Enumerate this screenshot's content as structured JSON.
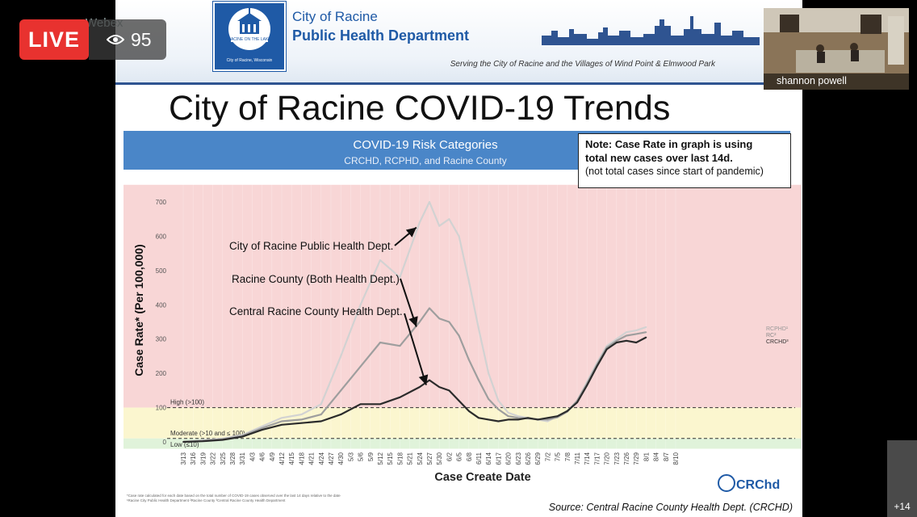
{
  "stream": {
    "live_label": "LIVE",
    "viewer_count": "95",
    "app_label": "Webex",
    "participant_name": "shannon powell",
    "more_participants": "+14"
  },
  "slide": {
    "header_line_1": "City of Racine",
    "header_line_2": "Public Health Department",
    "logo_text_top": "RACINE ON THE LAKE",
    "logo_text_bottom": "City of Racine, Wisconsin",
    "tagline": "Serving the City of Racine and the Villages of Wind Point & Elmwood Park",
    "title": "City of Racine COVID-19 Trends",
    "note_line_1": "Note: Case Rate in graph is using",
    "note_line_2": "total new cases over last 14d.",
    "note_line_3": "(not total cases since start of pandemic)",
    "source": "Source: Central Racine County Health Dept. (CRCHD)",
    "footnote_1": "*Case rate calculated for each date based on the total number of COVID-19 cases observed over the last 14 days relative to the date",
    "footnote_2": "¹Racine City Public Health Department    ²Racine County    ³Central Racine County Health Department",
    "crchd_logo_text": "CRChd"
  },
  "chart_data": {
    "type": "line",
    "title": "COVID-19 Risk Categories",
    "subtitle": "CRCHD, RCPHD, and Racine County",
    "xlabel": "Case Create Date",
    "ylabel": "Case Rate* (Per 100,000)",
    "ylim": [
      0,
      750
    ],
    "yticks": [
      0,
      100,
      200,
      300,
      400,
      500,
      600,
      700
    ],
    "x_ticks": [
      "3/13",
      "3/16",
      "3/19",
      "3/22",
      "3/25",
      "3/28",
      "3/31",
      "4/3",
      "4/6",
      "4/9",
      "4/12",
      "4/15",
      "4/18",
      "4/21",
      "4/24",
      "4/27",
      "4/30",
      "5/3",
      "5/6",
      "5/9",
      "5/12",
      "5/15",
      "5/18",
      "5/21",
      "5/24",
      "5/27",
      "5/30",
      "6/2",
      "6/5",
      "6/8",
      "6/11",
      "6/14",
      "6/17",
      "6/20",
      "6/23",
      "6/26",
      "6/29",
      "7/2",
      "7/5",
      "7/8",
      "7/11",
      "7/14",
      "7/17",
      "7/20",
      "7/23",
      "7/26",
      "7/29",
      "8/1",
      "8/4",
      "8/7",
      "8/10"
    ],
    "risk_bands": [
      {
        "label": "High (>100)",
        "from": 100,
        "to": 750,
        "color": "#f8d6d6"
      },
      {
        "label": "Moderate (>10 and ≤ 100)",
        "from": 10,
        "to": 100,
        "color": "#fbf6cf"
      },
      {
        "label": "Low (≤10)",
        "from": -20,
        "to": 10,
        "color": "#e0f3da"
      }
    ],
    "annotations": [
      "City of Racine Public Health Dept.",
      "Racine County (Both Health Dept.)",
      "Central Racine County Health Dept."
    ],
    "series": [
      {
        "name": "RCPHD",
        "color": "#d2d2d2",
        "x": [
          "3/13",
          "3/19",
          "3/25",
          "3/31",
          "4/6",
          "4/12",
          "4/18",
          "4/24",
          "4/30",
          "5/6",
          "5/12",
          "5/18",
          "5/24",
          "5/27",
          "5/30",
          "6/2",
          "6/5",
          "6/8",
          "6/11",
          "6/14",
          "6/17",
          "6/20",
          "6/23",
          "6/26",
          "6/29",
          "7/2",
          "7/5",
          "7/8",
          "7/11",
          "7/14",
          "7/17",
          "7/20",
          "7/23",
          "7/26",
          "7/29",
          "8/1"
        ],
        "y": [
          0,
          5,
          10,
          20,
          45,
          70,
          80,
          110,
          250,
          400,
          530,
          480,
          640,
          700,
          630,
          650,
          600,
          470,
          330,
          200,
          120,
          85,
          75,
          70,
          65,
          60,
          75,
          90,
          120,
          175,
          230,
          280,
          300,
          320,
          325,
          335
        ]
      },
      {
        "name": "RC",
        "color": "#9e9e9e",
        "x": [
          "3/13",
          "3/19",
          "3/25",
          "3/31",
          "4/6",
          "4/12",
          "4/18",
          "4/24",
          "4/30",
          "5/6",
          "5/12",
          "5/18",
          "5/24",
          "5/27",
          "5/30",
          "6/2",
          "6/5",
          "6/8",
          "6/11",
          "6/14",
          "6/17",
          "6/20",
          "6/23",
          "6/26",
          "6/29",
          "7/2",
          "7/5",
          "7/8",
          "7/11",
          "7/14",
          "7/17",
          "7/20",
          "7/23",
          "7/26",
          "7/29",
          "8/1"
        ],
        "y": [
          0,
          3,
          8,
          18,
          40,
          60,
          65,
          80,
          150,
          220,
          290,
          280,
          350,
          390,
          360,
          350,
          310,
          240,
          180,
          125,
          95,
          75,
          70,
          68,
          66,
          65,
          72,
          88,
          120,
          170,
          225,
          275,
          295,
          310,
          315,
          320
        ]
      },
      {
        "name": "CRCHD",
        "color": "#2b2b2b",
        "x": [
          "3/13",
          "3/19",
          "3/25",
          "3/31",
          "4/6",
          "4/12",
          "4/18",
          "4/24",
          "4/30",
          "5/6",
          "5/12",
          "5/18",
          "5/24",
          "5/27",
          "5/30",
          "6/2",
          "6/5",
          "6/8",
          "6/11",
          "6/14",
          "6/17",
          "6/20",
          "6/23",
          "6/26",
          "6/29",
          "7/2",
          "7/5",
          "7/8",
          "7/11",
          "7/14",
          "7/17",
          "7/20",
          "7/23",
          "7/26",
          "7/29",
          "8/1"
        ],
        "y": [
          0,
          2,
          6,
          15,
          35,
          50,
          55,
          60,
          80,
          110,
          110,
          130,
          160,
          180,
          160,
          150,
          120,
          90,
          70,
          65,
          60,
          65,
          65,
          70,
          65,
          70,
          75,
          90,
          115,
          165,
          220,
          270,
          290,
          295,
          290,
          305
        ]
      }
    ],
    "end_labels": [
      "RCPHD¹",
      "RC²",
      "CRCHD³"
    ]
  }
}
